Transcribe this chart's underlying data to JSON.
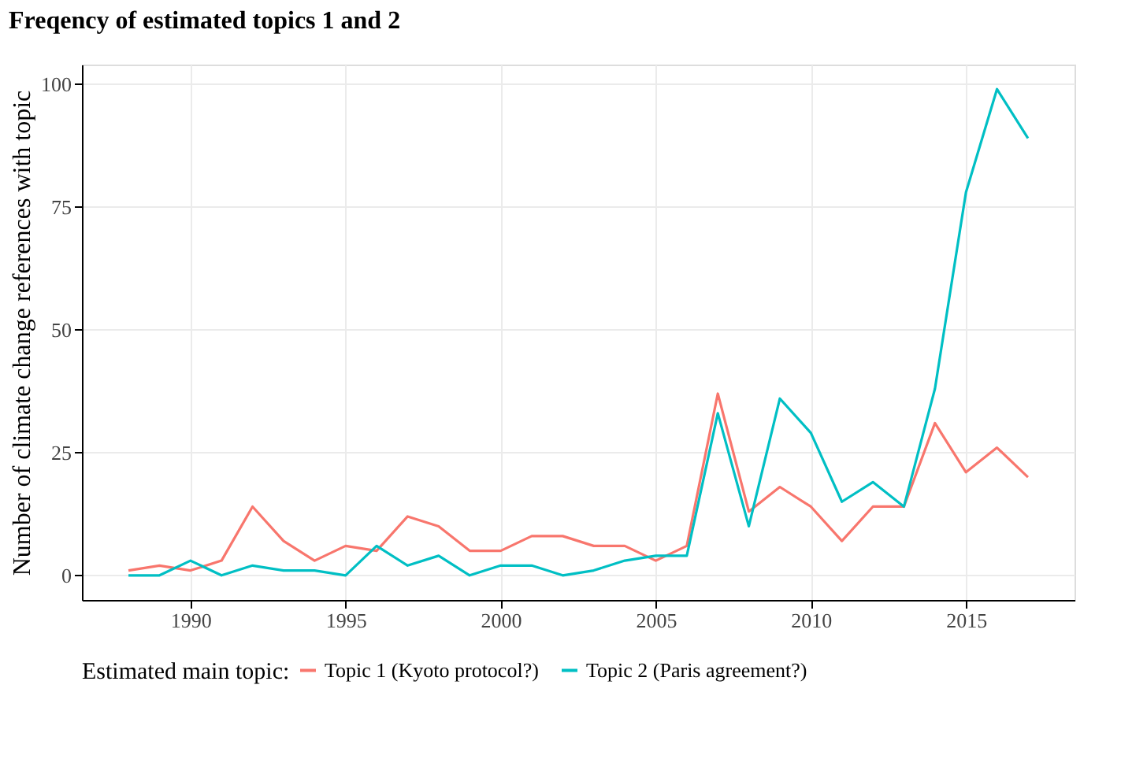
{
  "chart_data": {
    "type": "line",
    "title": "Freqency of estimated topics 1 and 2",
    "xlabel": null,
    "ylabel": "Number of climate change references with topic",
    "legend_title": "Estimated main topic:",
    "legend": "bottom",
    "grid": true,
    "x": [
      1988,
      1989,
      1990,
      1991,
      1992,
      1993,
      1994,
      1995,
      1996,
      1997,
      1998,
      1999,
      2000,
      2001,
      2002,
      2003,
      2004,
      2005,
      2006,
      2007,
      2008,
      2009,
      2010,
      2011,
      2012,
      2013,
      2014,
      2015,
      2016,
      2017
    ],
    "series": [
      {
        "name": "Topic 1 (Kyoto protocol?)",
        "color": "#f8766d",
        "values": [
          1,
          2,
          1,
          3,
          14,
          7,
          3,
          6,
          5,
          12,
          10,
          5,
          5,
          8,
          8,
          6,
          6,
          3,
          6,
          37,
          13,
          18,
          14,
          7,
          14,
          14,
          31,
          21,
          26,
          20
        ]
      },
      {
        "name": "Topic 2 (Paris agreement?)",
        "color": "#00bfc4",
        "values": [
          0,
          0,
          3,
          0,
          2,
          1,
          1,
          0,
          6,
          2,
          4,
          0,
          2,
          2,
          0,
          1,
          3,
          4,
          4,
          33,
          10,
          36,
          29,
          15,
          19,
          14,
          38,
          78,
          99,
          89
        ]
      }
    ],
    "xlim": [
      1986.5,
      2018.5
    ],
    "xticks": [
      1990,
      1995,
      2000,
      2005,
      2010,
      2015
    ],
    "ylim": [
      -5,
      104
    ],
    "yticks": [
      0,
      25,
      50,
      75,
      100
    ]
  }
}
